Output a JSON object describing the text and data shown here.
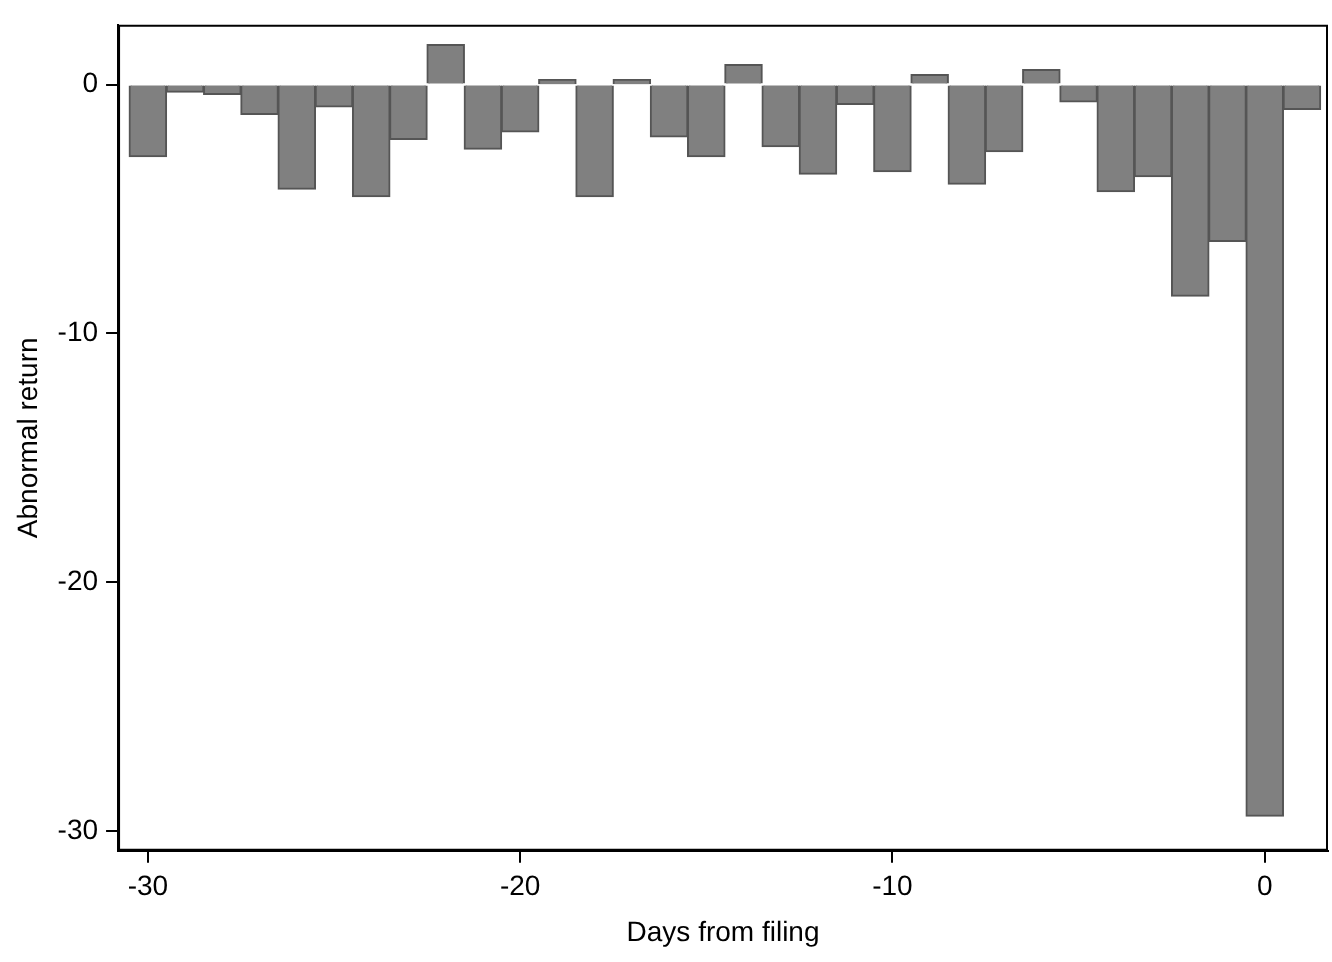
{
  "chart_data": {
    "type": "bar",
    "xlabel": "Days from filing",
    "ylabel": "Abnormal return",
    "x": [
      -30,
      -29,
      -28,
      -27,
      -26,
      -25,
      -24,
      -23,
      -22,
      -21,
      -20,
      -19,
      -18,
      -17,
      -16,
      -15,
      -14,
      -13,
      -12,
      -11,
      -10,
      -9,
      -8,
      -7,
      -6,
      -5,
      -4,
      -3,
      -2,
      -1,
      0,
      1
    ],
    "values": [
      -2.9,
      -0.3,
      -0.4,
      -1.2,
      -4.2,
      -0.9,
      -4.5,
      -2.2,
      1.6,
      -2.6,
      -1.9,
      0.2,
      -4.5,
      0.2,
      -2.1,
      -2.9,
      0.8,
      -2.5,
      -3.6,
      -0.8,
      -3.5,
      0.4,
      -4.0,
      -2.7,
      0.6,
      -0.7,
      -4.3,
      -3.7,
      -8.5,
      -6.3,
      -29.4,
      -1.0
    ],
    "color": "#808080",
    "xlim": [
      -30.8,
      1.7
    ],
    "xticks": [
      -30,
      -20,
      -10,
      0
    ],
    "ylim": [
      -30.8,
      2.4
    ],
    "yticks": [
      -30,
      -20,
      -10,
      0
    ],
    "grid": false,
    "legend": false
  }
}
